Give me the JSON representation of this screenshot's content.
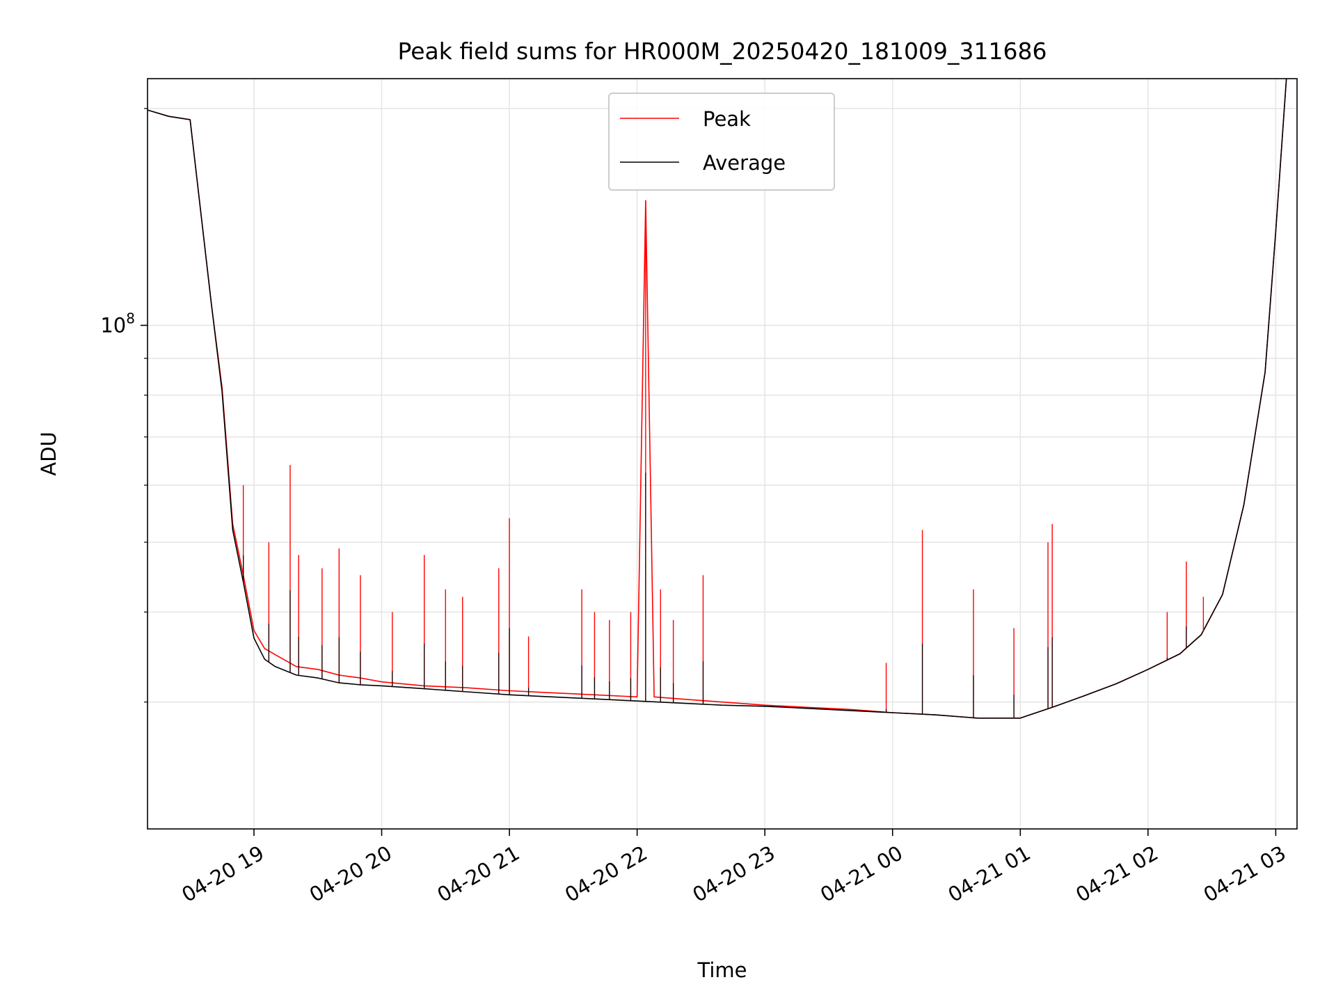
{
  "chart_data": {
    "type": "line",
    "title": "Peak field sums for HR000M_20250420_181009_311686",
    "xlabel": "Time",
    "ylabel": "ADU",
    "y_scale": "log",
    "ylim": [
      20000000,
      220000000
    ],
    "xlim": [
      "2025-04-20 18:10",
      "2025-04-21 03:10"
    ],
    "x_ticks": [
      {
        "t": "2025-04-20 19:00",
        "label": "04-20 19"
      },
      {
        "t": "2025-04-20 20:00",
        "label": "04-20 20"
      },
      {
        "t": "2025-04-20 21:00",
        "label": "04-20 21"
      },
      {
        "t": "2025-04-20 22:00",
        "label": "04-20 22"
      },
      {
        "t": "2025-04-20 23:00",
        "label": "04-20 23"
      },
      {
        "t": "2025-04-21 00:00",
        "label": "04-21 00"
      },
      {
        "t": "2025-04-21 01:00",
        "label": "04-21 01"
      },
      {
        "t": "2025-04-21 02:00",
        "label": "04-21 02"
      },
      {
        "t": "2025-04-21 03:00",
        "label": "04-21 03"
      }
    ],
    "y_ticks": [
      {
        "value": 100000000,
        "label_base": "10",
        "label_exp": "8"
      }
    ],
    "grid": true,
    "legend_position": "upper-center",
    "series": [
      {
        "name": "Peak",
        "color": "#ff0000",
        "x": [
          "2025-04-20 18:10",
          "2025-04-20 18:20",
          "2025-04-20 18:30",
          "2025-04-20 18:40",
          "2025-04-20 18:45",
          "2025-04-20 18:50",
          "2025-04-20 18:55",
          "2025-04-20 19:00",
          "2025-04-20 19:05",
          "2025-04-20 19:10",
          "2025-04-20 19:20",
          "2025-04-20 19:30",
          "2025-04-20 19:40",
          "2025-04-20 19:50",
          "2025-04-20 20:00",
          "2025-04-20 20:20",
          "2025-04-20 20:40",
          "2025-04-20 21:00",
          "2025-04-20 21:20",
          "2025-04-20 21:40",
          "2025-04-20 22:00",
          "2025-04-20 22:04",
          "2025-04-20 22:08",
          "2025-04-20 22:20",
          "2025-04-20 22:40",
          "2025-04-20 23:00",
          "2025-04-20 23:20",
          "2025-04-20 23:40",
          "2025-04-21 00:00",
          "2025-04-21 00:20",
          "2025-04-21 00:40",
          "2025-04-21 01:00",
          "2025-04-21 01:15",
          "2025-04-21 01:30",
          "2025-04-21 01:45",
          "2025-04-21 02:00",
          "2025-04-21 02:15",
          "2025-04-21 02:25",
          "2025-04-21 02:35",
          "2025-04-21 02:45",
          "2025-04-21 02:55",
          "2025-04-21 03:00",
          "2025-04-21 03:05"
        ],
        "values": [
          199000000,
          195000000,
          193000000,
          107000000,
          82000000,
          53000000,
          45000000,
          37700000,
          35600000,
          34900000,
          33600000,
          33300000,
          32700000,
          32400000,
          32000000,
          31600000,
          31400000,
          31100000,
          30900000,
          30700000,
          30500000,
          149000000,
          30500000,
          30300000,
          30000000,
          29700000,
          29500000,
          29300000,
          29000000,
          28800000,
          28500000,
          28500000,
          29500000,
          30600000,
          31800000,
          33300000,
          35000000,
          37200000,
          42300000,
          56300000,
          86100000,
          135000000,
          220000000
        ]
      },
      {
        "name": "Average",
        "color": "#000000",
        "x": [
          "2025-04-20 18:10",
          "2025-04-20 18:20",
          "2025-04-20 18:30",
          "2025-04-20 18:40",
          "2025-04-20 18:45",
          "2025-04-20 18:50",
          "2025-04-20 18:55",
          "2025-04-20 19:00",
          "2025-04-20 19:05",
          "2025-04-20 19:10",
          "2025-04-20 19:20",
          "2025-04-20 19:30",
          "2025-04-20 19:40",
          "2025-04-20 19:50",
          "2025-04-20 20:00",
          "2025-04-20 20:20",
          "2025-04-20 20:40",
          "2025-04-20 21:00",
          "2025-04-20 21:20",
          "2025-04-20 21:40",
          "2025-04-20 22:00",
          "2025-04-20 22:20",
          "2025-04-20 22:40",
          "2025-04-20 23:00",
          "2025-04-20 23:20",
          "2025-04-20 23:40",
          "2025-04-21 00:00",
          "2025-04-21 00:20",
          "2025-04-21 00:40",
          "2025-04-21 01:00",
          "2025-04-21 01:15",
          "2025-04-21 01:30",
          "2025-04-21 01:45",
          "2025-04-21 02:00",
          "2025-04-21 02:15",
          "2025-04-21 02:25",
          "2025-04-21 02:35",
          "2025-04-21 02:45",
          "2025-04-21 02:55",
          "2025-04-21 03:00",
          "2025-04-21 03:05"
        ],
        "values": [
          199000000,
          195000000,
          193000000,
          107000000,
          81000000,
          52000000,
          44000000,
          36800000,
          34400000,
          33600000,
          32700000,
          32400000,
          31900000,
          31700000,
          31600000,
          31300000,
          31000000,
          30700000,
          30500000,
          30300000,
          30100000,
          29900000,
          29700000,
          29600000,
          29400000,
          29200000,
          29000000,
          28800000,
          28500000,
          28500000,
          29500000,
          30600000,
          31800000,
          33300000,
          35000000,
          37200000,
          42300000,
          56300000,
          86100000,
          135000000,
          220000000
        ]
      }
    ],
    "spikes": {
      "series": "Peak",
      "x": [
        "2025-04-20 18:55",
        "2025-04-20 19:07",
        "2025-04-20 19:17",
        "2025-04-20 19:21",
        "2025-04-20 19:32",
        "2025-04-20 19:40",
        "2025-04-20 19:50",
        "2025-04-20 20:05",
        "2025-04-20 20:20",
        "2025-04-20 20:30",
        "2025-04-20 20:38",
        "2025-04-20 20:55",
        "2025-04-20 21:00",
        "2025-04-20 21:09",
        "2025-04-20 21:34",
        "2025-04-20 21:40",
        "2025-04-20 21:47",
        "2025-04-20 21:57",
        "2025-04-20 22:04",
        "2025-04-20 22:11",
        "2025-04-20 22:17",
        "2025-04-20 22:31",
        "2025-04-20 23:57",
        "2025-04-21 00:14",
        "2025-04-21 00:38",
        "2025-04-21 00:57",
        "2025-04-21 01:13",
        "2025-04-21 01:15",
        "2025-04-21 02:09",
        "2025-04-21 02:18",
        "2025-04-21 02:26"
      ],
      "values": [
        60000000,
        50000000,
        64000000,
        48000000,
        46000000,
        49000000,
        45000000,
        40000000,
        48000000,
        43000000,
        42000000,
        46000000,
        54000000,
        37000000,
        43000000,
        40000000,
        39000000,
        40000000,
        149000000,
        43000000,
        39000000,
        45000000,
        34000000,
        52000000,
        43000000,
        38000000,
        50000000,
        53000000,
        40000000,
        47000000,
        42000000
      ]
    }
  }
}
